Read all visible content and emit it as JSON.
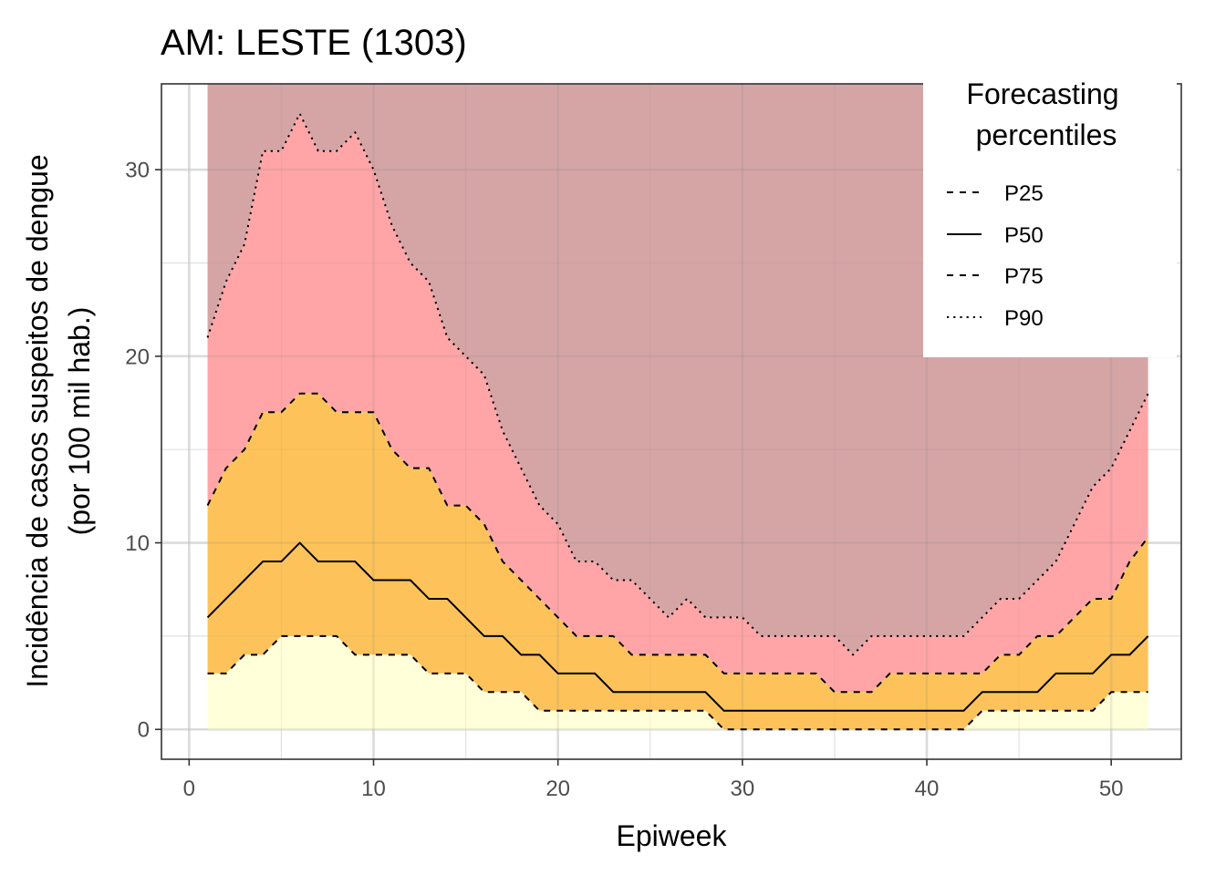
{
  "chart_data": {
    "type": "area",
    "title": "AM: LESTE (1303)",
    "xlabel": "Epiweek",
    "ylabel": [
      "Incidência de casos suspeitos de dengue",
      "(por 100 mil hab.)"
    ],
    "xlim": [
      -1.5,
      53.8
    ],
    "ylim": [
      -1.6,
      34.6
    ],
    "x_ticks": [
      0,
      10,
      20,
      30,
      40,
      50
    ],
    "y_ticks": [
      0,
      10,
      20,
      30
    ],
    "grid": true,
    "legend_position": "top-right",
    "legend": {
      "title": [
        "Forecasting",
        "percentiles"
      ],
      "entries": [
        {
          "label": "P25",
          "dash": "dashed"
        },
        {
          "label": "P50",
          "dash": "solid"
        },
        {
          "label": "P75",
          "dash": "dashed"
        },
        {
          "label": "P90",
          "dash": "dotted"
        }
      ]
    },
    "band_colors": {
      "below_p25": "#ffffd9",
      "p25_p75": "#fdc35a",
      "p75_p90": "#ffa5a7",
      "above_p90": "#d5a5a6"
    },
    "x": [
      1,
      2,
      3,
      4,
      5,
      6,
      7,
      8,
      9,
      10,
      11,
      12,
      13,
      14,
      15,
      16,
      17,
      18,
      19,
      20,
      21,
      22,
      23,
      24,
      25,
      26,
      27,
      28,
      29,
      30,
      31,
      32,
      33,
      34,
      35,
      36,
      37,
      38,
      39,
      40,
      41,
      42,
      43,
      44,
      45,
      46,
      47,
      48,
      49,
      50,
      51,
      52
    ],
    "series": [
      {
        "name": "P25",
        "dash": "dashed",
        "values": [
          3,
          3,
          4,
          4,
          5,
          5,
          5,
          5,
          4,
          4,
          4,
          4,
          3,
          3,
          3,
          2,
          2,
          2,
          1,
          1,
          1,
          1,
          1,
          1,
          1,
          1,
          1,
          1,
          0,
          0,
          0,
          0,
          0,
          0,
          0,
          0,
          0,
          0,
          0,
          0,
          0,
          0,
          1,
          1,
          1,
          1,
          1,
          1,
          1,
          2,
          2,
          2
        ]
      },
      {
        "name": "P50",
        "dash": "solid",
        "values": [
          6,
          7,
          8,
          9,
          9,
          10,
          9,
          9,
          9,
          8,
          8,
          8,
          7,
          7,
          6,
          5,
          5,
          4,
          4,
          3,
          3,
          3,
          2,
          2,
          2,
          2,
          2,
          2,
          1,
          1,
          1,
          1,
          1,
          1,
          1,
          1,
          1,
          1,
          1,
          1,
          1,
          1,
          2,
          2,
          2,
          2,
          3,
          3,
          3,
          4,
          4,
          5
        ]
      },
      {
        "name": "P75",
        "dash": "dashed",
        "values": [
          12,
          14,
          15,
          17,
          17,
          18,
          18,
          17,
          17,
          17,
          15,
          14,
          14,
          12,
          12,
          11,
          9,
          8,
          7,
          6,
          5,
          5,
          5,
          4,
          4,
          4,
          4,
          4,
          3,
          3,
          3,
          3,
          3,
          3,
          2,
          2,
          2,
          3,
          3,
          3,
          3,
          3,
          3,
          4,
          4,
          5,
          5,
          6,
          7,
          7,
          9,
          10.3
        ]
      },
      {
        "name": "P90",
        "dash": "dotted",
        "values": [
          21,
          24,
          26,
          31,
          31,
          33,
          31,
          31,
          32,
          30,
          27,
          25,
          24,
          21,
          20,
          19,
          16,
          14,
          12,
          11,
          9,
          9,
          8,
          8,
          7,
          6,
          7,
          6,
          6,
          6,
          5,
          5,
          5,
          5,
          5,
          4,
          5,
          5,
          5,
          5,
          5,
          5,
          6,
          7,
          7,
          8,
          9,
          11,
          13,
          14,
          16,
          18
        ]
      }
    ],
    "top_band_value": 34.6
  }
}
